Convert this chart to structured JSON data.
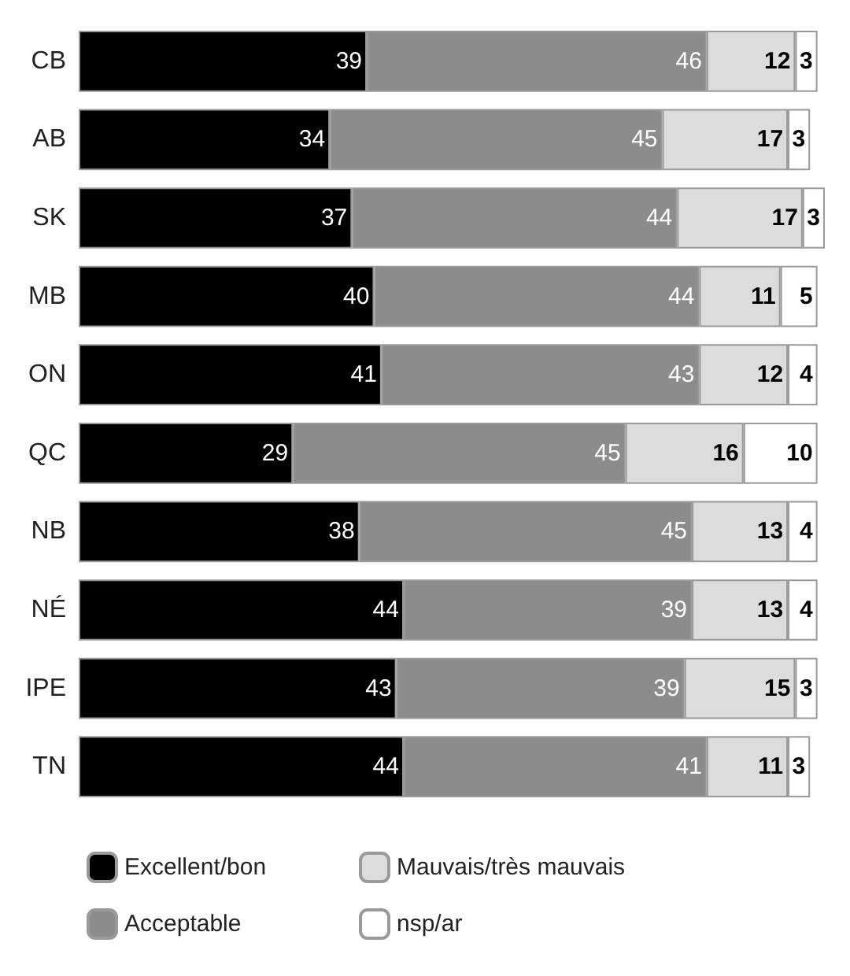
{
  "chart_data": {
    "type": "bar",
    "orientation": "horizontal",
    "stacked": true,
    "data_labels": true,
    "legend": "bottom",
    "categories": [
      "CB",
      "AB",
      "SK",
      "MB",
      "ON",
      "QC",
      "NB",
      "NÉ",
      "IPE",
      "TN"
    ],
    "series": [
      {
        "name": "Excellent/bon",
        "color": "#000000",
        "values": [
          39,
          34,
          37,
          40,
          41,
          29,
          38,
          44,
          43,
          44
        ]
      },
      {
        "name": "Acceptable",
        "color": "#8c8c8c",
        "values": [
          46,
          45,
          44,
          44,
          43,
          45,
          45,
          39,
          39,
          41
        ]
      },
      {
        "name": "Mauvais/très mauvais",
        "color": "#dcdcdc",
        "values": [
          12,
          17,
          17,
          11,
          12,
          16,
          13,
          13,
          15,
          11
        ]
      },
      {
        "name": "nsp/ar",
        "color": "#ffffff",
        "values": [
          3,
          3,
          3,
          5,
          4,
          10,
          4,
          4,
          3,
          3
        ]
      }
    ]
  }
}
